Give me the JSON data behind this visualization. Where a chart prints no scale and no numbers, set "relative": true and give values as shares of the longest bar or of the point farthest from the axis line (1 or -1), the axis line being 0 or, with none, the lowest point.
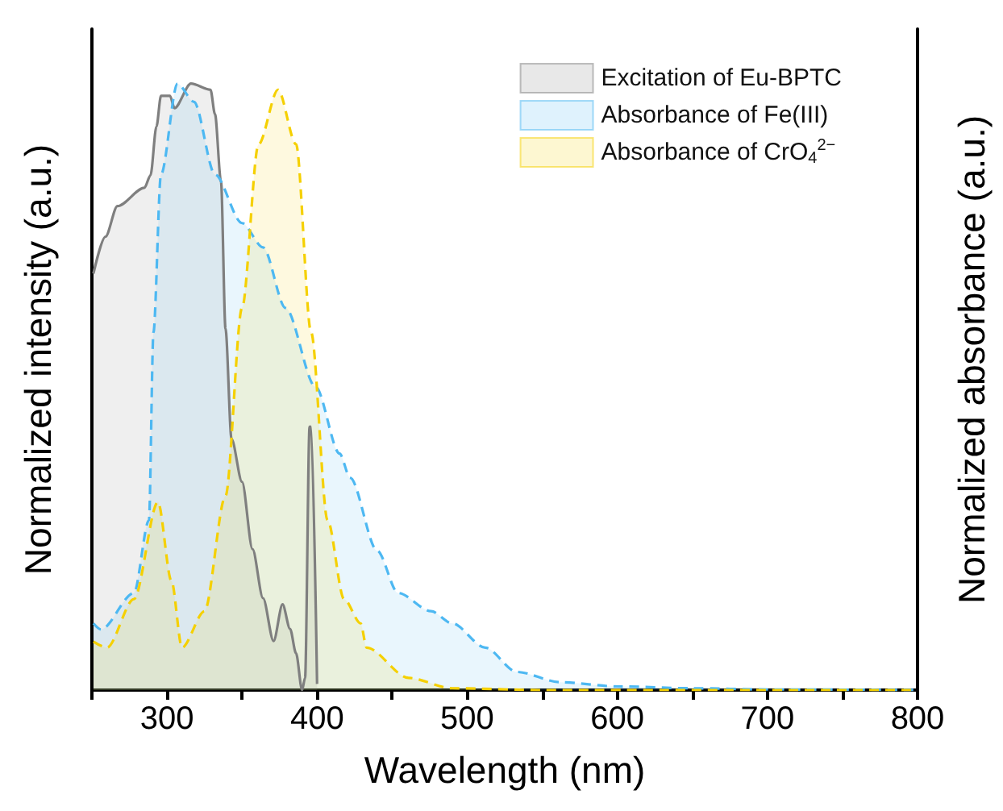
{
  "chart_data": {
    "type": "area",
    "relative": true,
    "xlabel": "Wavelength (nm)",
    "ylabel": "Normalized intensity (a.u.)",
    "y2label": "Normalized absorbance (a.u.)",
    "xlim": [
      250,
      800
    ],
    "xticks": [
      {
        "value": 250,
        "label": null
      },
      300,
      {
        "value": 350,
        "label": null
      },
      400,
      {
        "value": 450,
        "label": null
      },
      500,
      {
        "value": 550,
        "label": null
      },
      600,
      {
        "value": 650,
        "label": null
      },
      700,
      {
        "value": 750,
        "label": null
      },
      800
    ],
    "grid": false,
    "legend": "top right",
    "series": [
      {
        "name": "Excitation of Eu-BPTC",
        "color": "#7f7f7f",
        "line_style": "solid",
        "x": [
          251,
          259,
          267,
          285,
          289,
          293,
          296,
          302,
          305,
          316,
          329,
          332,
          336,
          339,
          343,
          350,
          357,
          364,
          371,
          377,
          382,
          386,
          390,
          392,
          395,
          396,
          400
        ],
        "values": [
          0.68,
          0.74,
          0.79,
          0.82,
          0.84,
          0.92,
          0.97,
          0.97,
          0.95,
          0.99,
          0.98,
          0.94,
          0.83,
          0.59,
          0.41,
          0.34,
          0.23,
          0.15,
          0.08,
          0.14,
          0.1,
          0.06,
          0,
          0.02,
          0.43,
          0.43,
          0.01
        ]
      },
      {
        "name": "Absorbance of Fe(III)",
        "color": "#4db8f2",
        "line_style": "dashed",
        "axis": "y2",
        "x": [
          251,
          256,
          278,
          288,
          291,
          296,
          307,
          318,
          332,
          350,
          364,
          379,
          399,
          415,
          422,
          440,
          454,
          476,
          490,
          512,
          533,
          562,
          600,
          650,
          700,
          800
        ],
        "values": [
          0.11,
          0.1,
          0.16,
          0.28,
          0.59,
          0.85,
          1,
          0.97,
          0.85,
          0.77,
          0.73,
          0.63,
          0.5,
          0.39,
          0.35,
          0.23,
          0.16,
          0.13,
          0.11,
          0.07,
          0.03,
          0.013,
          0.006,
          0.003,
          0.001,
          0
        ]
      },
      {
        "name": "Absorbance of CrO$_{4}$$^{2−}$",
        "color": "#f5d000",
        "line_style": "dashed",
        "axis": "y2",
        "x": [
          251,
          260,
          278,
          294,
          303,
          310,
          325,
          339,
          350,
          361,
          374,
          386,
          396,
          407,
          418,
          429,
          433,
          461,
          490,
          550,
          800
        ],
        "values": [
          0.08,
          0.07,
          0.15,
          0.31,
          0.18,
          0.07,
          0.13,
          0.32,
          0.63,
          0.9,
          0.99,
          0.9,
          0.59,
          0.28,
          0.15,
          0.11,
          0.07,
          0.02,
          0.003,
          0,
          0
        ]
      }
    ]
  }
}
